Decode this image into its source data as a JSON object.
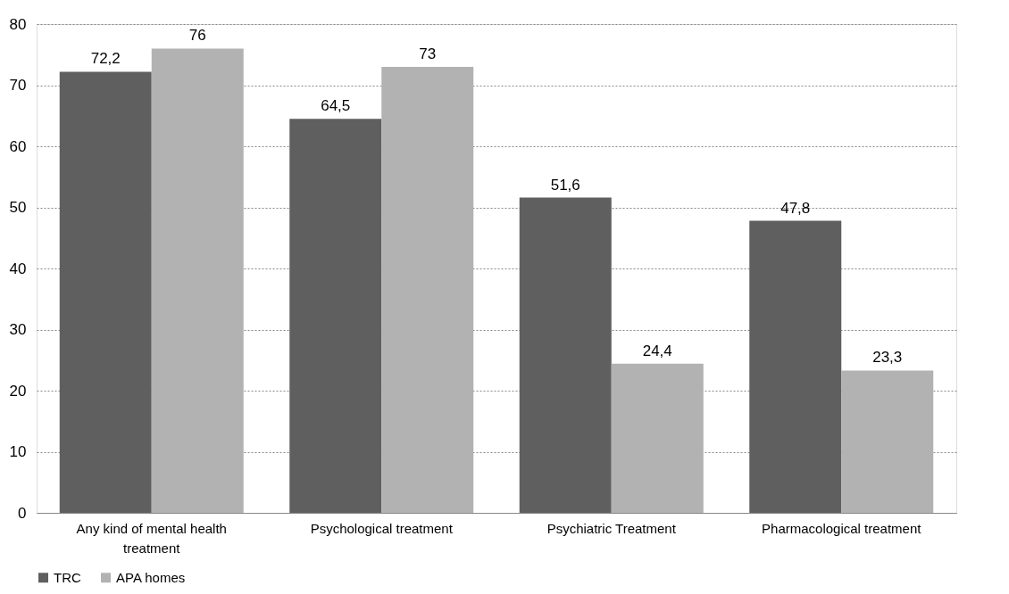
{
  "chart_data": {
    "type": "bar",
    "categories": [
      "Any kind of mental health treatment",
      "Psychological treatment",
      "Psychiatric Treatment",
      "Pharmacological treatment"
    ],
    "series": [
      {
        "name": "TRC",
        "color": "#5f5f5f",
        "values": [
          72.2,
          64.5,
          51.6,
          47.8
        ],
        "value_labels": [
          "72,2",
          "64,5",
          "51,6",
          "47,8"
        ]
      },
      {
        "name": "APA homes",
        "color": "#b2b2b2",
        "values": [
          76,
          73,
          24.4,
          23.3
        ],
        "value_labels": [
          "76",
          "73",
          "24,4",
          "23,3"
        ]
      }
    ],
    "ylim": [
      0,
      80
    ],
    "yticks": [
      0,
      10,
      20,
      30,
      40,
      50,
      60,
      70,
      80
    ],
    "grid": "y",
    "legend": "bottom"
  }
}
